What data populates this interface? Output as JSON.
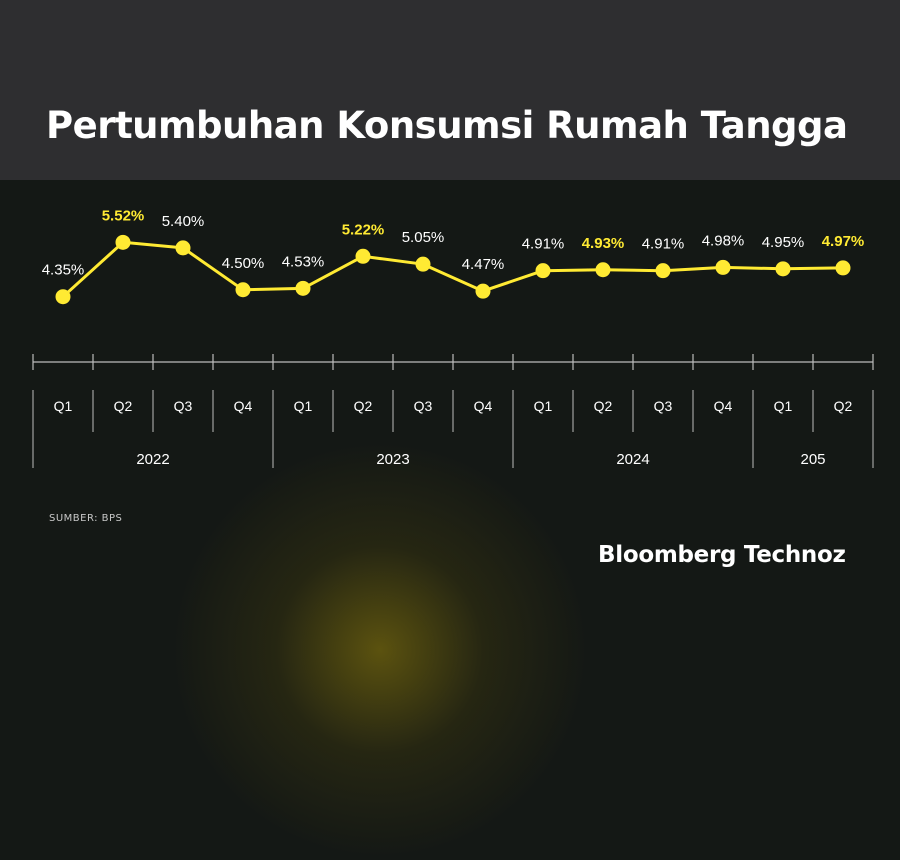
{
  "header": {
    "title": "Pertumbuhan Konsumsi Rumah Tangga"
  },
  "footer": {
    "source": "SUMBER: BPS",
    "brand": "Bloomberg Technoz"
  },
  "colors": {
    "accent": "#ffea33",
    "line": "#ffea33",
    "text": "#ffffff",
    "axis": "#bcbcbc",
    "header_bg": "#2e2e30",
    "body_bg": "#141815"
  },
  "chart_data": {
    "type": "line",
    "title": "Pertumbuhan Konsumsi Rumah Tangga",
    "categories": [
      "Q1",
      "Q2",
      "Q3",
      "Q4",
      "Q1",
      "Q2",
      "Q3",
      "Q4",
      "Q1",
      "Q2",
      "Q3",
      "Q4",
      "Q1",
      "Q2"
    ],
    "years": [
      {
        "label": "2022",
        "quarters": 4
      },
      {
        "label": "2023",
        "quarters": 4
      },
      {
        "label": "2024",
        "quarters": 4
      },
      {
        "label": "205",
        "quarters": 2
      }
    ],
    "values": [
      4.35,
      5.52,
      5.4,
      4.5,
      4.53,
      5.22,
      5.05,
      4.47,
      4.91,
      4.93,
      4.91,
      4.98,
      4.95,
      4.97
    ],
    "labels": [
      "4.35%",
      "5.52%",
      "5.40%",
      "4.50%",
      "4.53%",
      "5.22%",
      "5.05%",
      "4.47%",
      "4.91%",
      "4.93%",
      "4.91%",
      "4.98%",
      "4.95%",
      "4.97%"
    ],
    "highlighted": [
      false,
      true,
      false,
      false,
      false,
      true,
      false,
      false,
      false,
      true,
      false,
      false,
      false,
      true
    ],
    "ylim": [
      4.0,
      6.0
    ],
    "grid": false,
    "legend": "none"
  }
}
